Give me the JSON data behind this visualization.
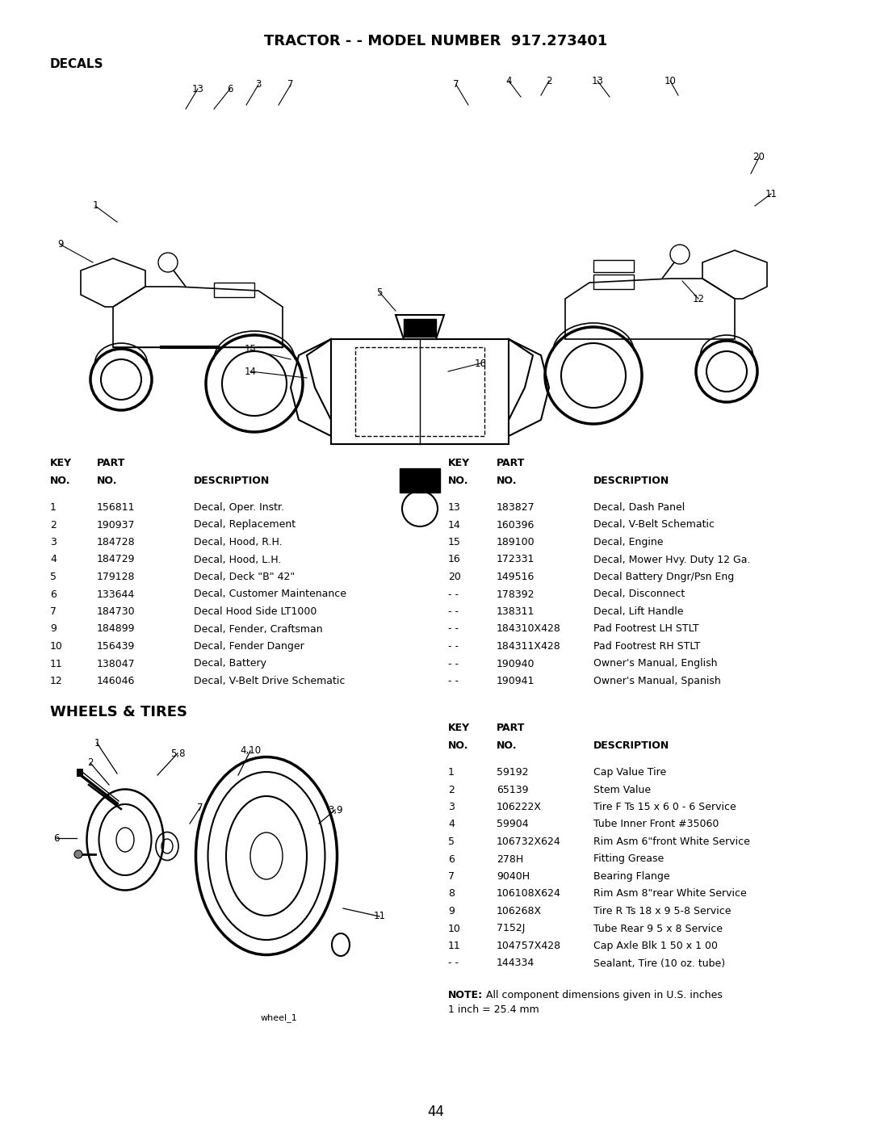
{
  "title": "TRACTOR - - MODEL NUMBER  917.273401",
  "section1": "DECALS",
  "section2": "WHEELS & TIRES",
  "bg_color": "#ffffff",
  "text_color": "#000000",
  "page_number": "44",
  "decals_left_table": {
    "rows": [
      [
        "1",
        "156811",
        "Decal, Oper. Instr."
      ],
      [
        "2",
        "190937",
        "Decal, Replacement"
      ],
      [
        "3",
        "184728",
        "Decal, Hood, R.H."
      ],
      [
        "4",
        "184729",
        "Decal, Hood, L.H."
      ],
      [
        "5",
        "179128",
        "Decal, Deck \"B\" 42\""
      ],
      [
        "6",
        "133644",
        "Decal, Customer Maintenance"
      ],
      [
        "7",
        "184730",
        "Decal Hood Side LT1000"
      ],
      [
        "9",
        "184899",
        "Decal, Fender, Craftsman"
      ],
      [
        "10",
        "156439",
        "Decal, Fender Danger"
      ],
      [
        "11",
        "138047",
        "Decal, Battery"
      ],
      [
        "12",
        "146046",
        "Decal, V-Belt Drive Schematic"
      ]
    ]
  },
  "decals_right_table": {
    "rows": [
      [
        "13",
        "183827",
        "Decal, Dash Panel"
      ],
      [
        "14",
        "160396",
        "Decal, V-Belt Schematic"
      ],
      [
        "15",
        "189100",
        "Decal, Engine"
      ],
      [
        "16",
        "172331",
        "Decal, Mower Hvy. Duty 12 Ga."
      ],
      [
        "20",
        "149516",
        "Decal Battery Dngr/Psn Eng"
      ],
      [
        "- -",
        "178392",
        "Decal, Disconnect"
      ],
      [
        "- -",
        "138311",
        "Decal, Lift Handle"
      ],
      [
        "- -",
        "184310X428",
        "Pad Footrest LH STLT"
      ],
      [
        "- -",
        "184311X428",
        "Pad Footrest RH STLT"
      ],
      [
        "- -",
        "190940",
        "Owner's Manual, English"
      ],
      [
        "- -",
        "190941",
        "Owner's Manual, Spanish"
      ]
    ]
  },
  "wheels_table": {
    "rows": [
      [
        "1",
        "59192",
        "Cap Value Tire"
      ],
      [
        "2",
        "65139",
        "Stem Value"
      ],
      [
        "3",
        "106222X",
        "Tire F Ts 15 x 6 0 - 6 Service"
      ],
      [
        "4",
        "59904",
        "Tube Inner Front #35060"
      ],
      [
        "5",
        "106732X624",
        "Rim Asm 6\"front White Service"
      ],
      [
        "6",
        "278H",
        "Fitting Grease"
      ],
      [
        "7",
        "9040H",
        "Bearing Flange"
      ],
      [
        "8",
        "106108X624",
        "Rim Asm 8\"rear White Service"
      ],
      [
        "9",
        "106268X",
        "Tire R Ts 18 x 9 5-8 Service"
      ],
      [
        "10",
        "7152J",
        "Tube Rear 9 5 x 8 Service"
      ],
      [
        "11",
        "104757X428",
        "Cap Axle Blk 1 50 x 1 00"
      ],
      [
        "- -",
        "144334",
        "Sealant, Tire (10 oz. tube)"
      ]
    ]
  },
  "note_line1": "NOTE: All component dimensions given in U.S. inches",
  "note_line2": "1 inch = 25.4 mm",
  "note_bold": "NOTE:"
}
